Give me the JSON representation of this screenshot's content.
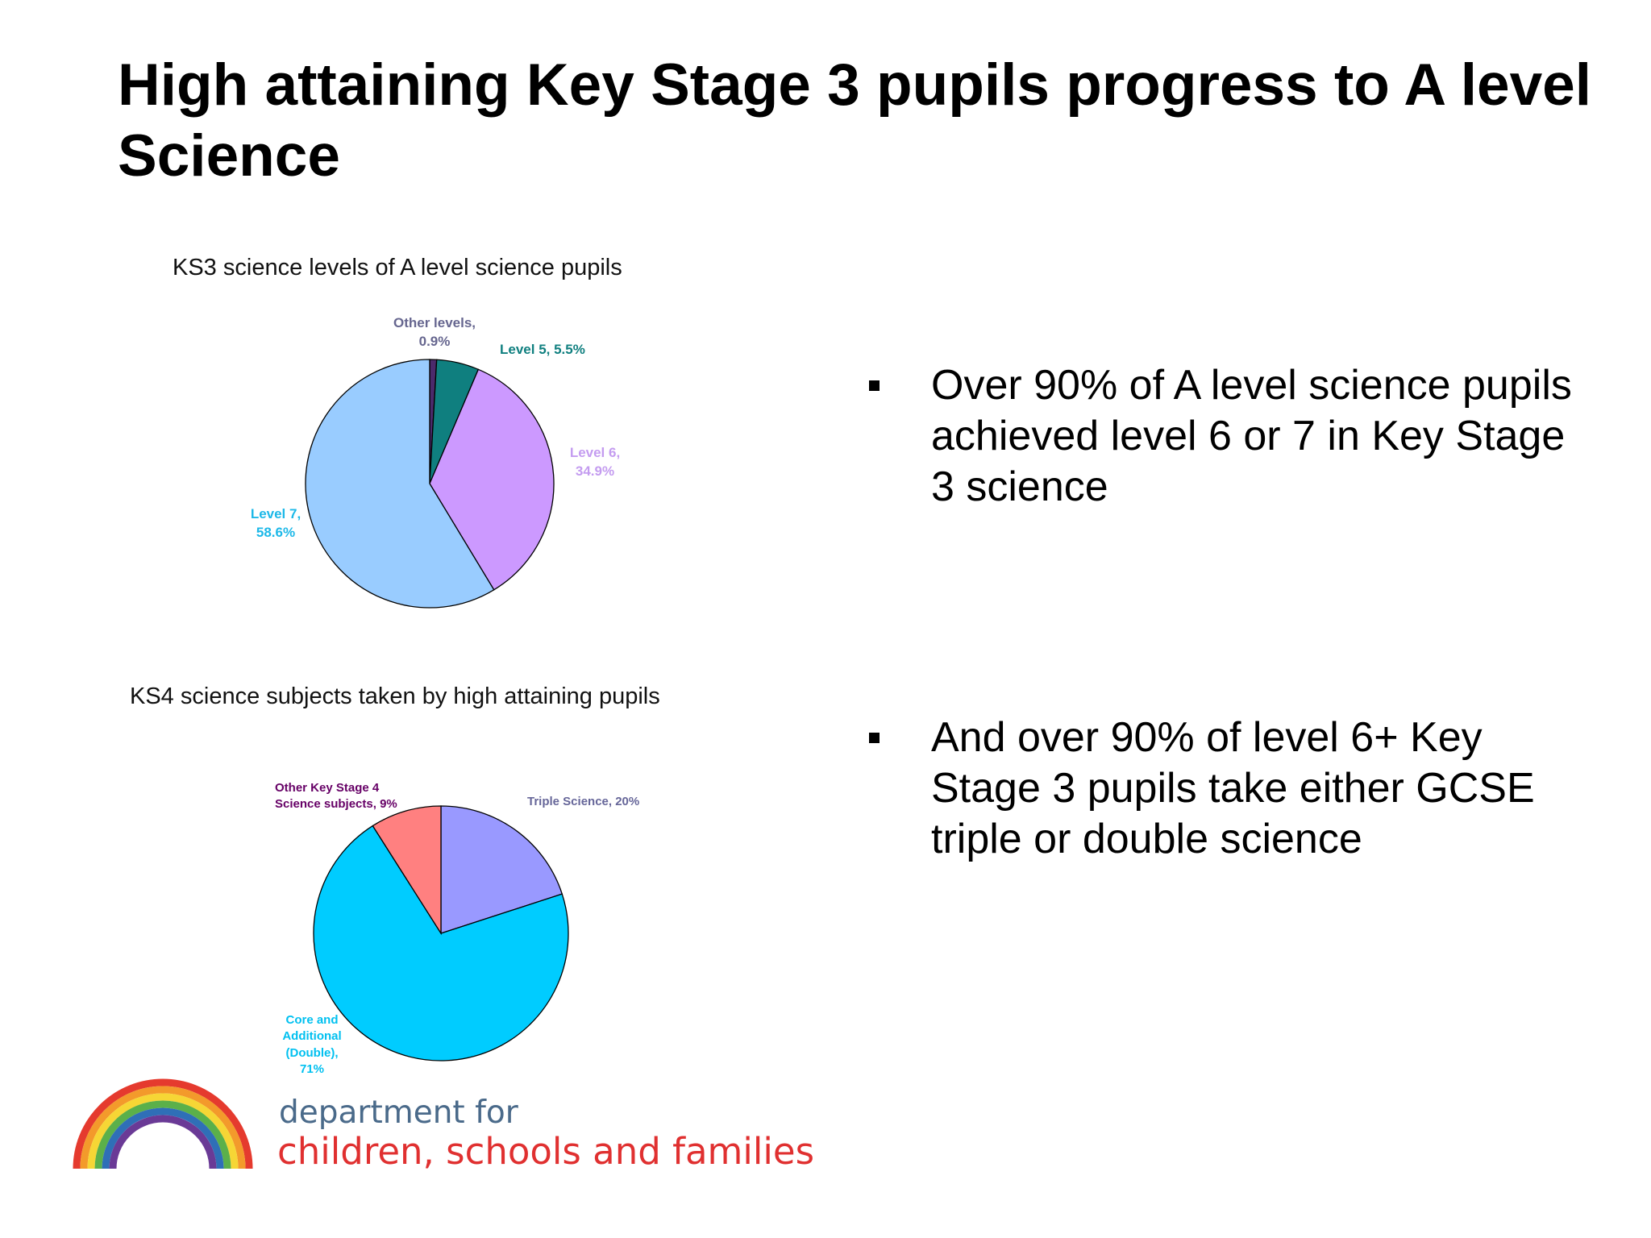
{
  "slide_title": "High attaining Key Stage 3 pupils progress to A level Science",
  "chart_data": [
    {
      "type": "pie",
      "title": "KS3 science levels of A level science pupils",
      "values": [
        0.9,
        5.5,
        34.9,
        58.6
      ],
      "value_labels": [
        "Other levels, 0.9%",
        "Level 5, 5.5%",
        "Level 6, 34.9%",
        "Level 7, 58.6%"
      ],
      "colors": [
        "#4b2a6b",
        "#0f7f7f",
        "#cc99ff",
        "#99ccff"
      ],
      "label_colors": [
        "#66668f",
        "#0f7f7f",
        "#c49cf0",
        "#1cb8e8"
      ]
    },
    {
      "type": "pie",
      "title": "KS4 science subjects taken by high attaining pupils",
      "values": [
        20,
        71,
        9
      ],
      "value_labels": [
        "Triple Science, 20%",
        "Core and Additional (Double), 71%",
        "Other Key Stage 4 Science subjects, 9%"
      ],
      "colors": [
        "#9999ff",
        "#00ccff",
        "#ff8080"
      ],
      "label_colors": [
        "#666699",
        "#00c0f0",
        "#660066"
      ]
    }
  ],
  "bullets": [
    "Over 90% of A level science pupils achieved level 6 or 7 in Key Stage 3 science",
    "And over 90% of level 6+ Key Stage 3 pupils take either GCSE triple or double science"
  ],
  "logo": {
    "line1": "department for",
    "line2": "children, schools and families"
  }
}
